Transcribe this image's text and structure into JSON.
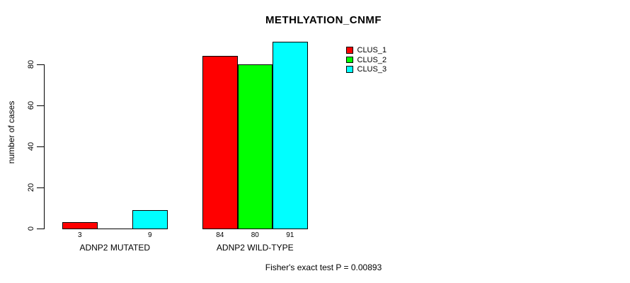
{
  "chart_data": {
    "type": "bar",
    "title": "METHLYATION_CNMF",
    "ylabel": "number of cases",
    "xlabel": "",
    "categories": [
      "ADNP2 MUTATED",
      "ADNP2 WILD-TYPE"
    ],
    "series": [
      {
        "name": "CLUS_1",
        "color": "#ff0000",
        "values": [
          3,
          84
        ]
      },
      {
        "name": "CLUS_2",
        "color": "#00ff00",
        "values": [
          0,
          80
        ]
      },
      {
        "name": "CLUS_3",
        "color": "#00ffff",
        "values": [
          9,
          91
        ]
      }
    ],
    "bar_value_labels": [
      [
        "3",
        "",
        "9"
      ],
      [
        "84",
        "80",
        "91"
      ]
    ],
    "yticks": [
      "0",
      "20",
      "40",
      "60",
      "80"
    ],
    "ylim": [
      0,
      95
    ],
    "grid": false,
    "legend_position": "top-right",
    "bar_border_color": "#000000",
    "annotation": "Fisher's exact test P = 0.00893"
  }
}
